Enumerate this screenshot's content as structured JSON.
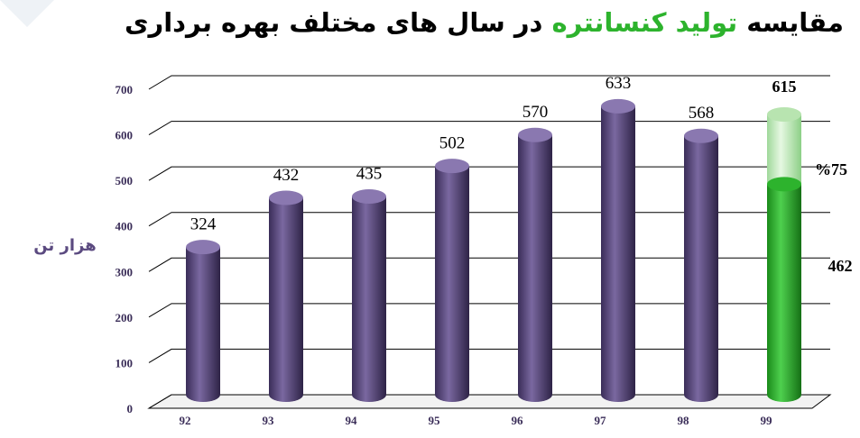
{
  "chart_data": {
    "type": "cylinder-bar",
    "title": [
      "مقایسه",
      "تولید کنسانتره",
      "در سال های مختلف بهره برداری"
    ],
    "title_colors": [
      "#000000",
      "#2db32d",
      "#000000"
    ],
    "y_label": "هزار تن",
    "categories": [
      "92",
      "93",
      "94",
      "95",
      "96",
      "97",
      "98",
      "99"
    ],
    "series": [
      {
        "colors": [
          "#5b4a80",
          "#5b4a80",
          "#5b4a80",
          "#5b4a80",
          "#5b4a80",
          "#5b4a80",
          "#5b4a80",
          "#c8ecc0"
        ],
        "values": [
          324,
          432,
          435,
          502,
          570,
          633,
          568,
          615
        ]
      },
      {
        "color": "#2db32d",
        "values": [
          null,
          null,
          null,
          null,
          null,
          null,
          null,
          462
        ]
      }
    ],
    "annotations": [
      "%75"
    ],
    "ylim": [
      0,
      700
    ],
    "yticks": [
      0,
      100,
      200,
      300,
      400,
      500,
      600,
      700
    ],
    "grid": true
  }
}
